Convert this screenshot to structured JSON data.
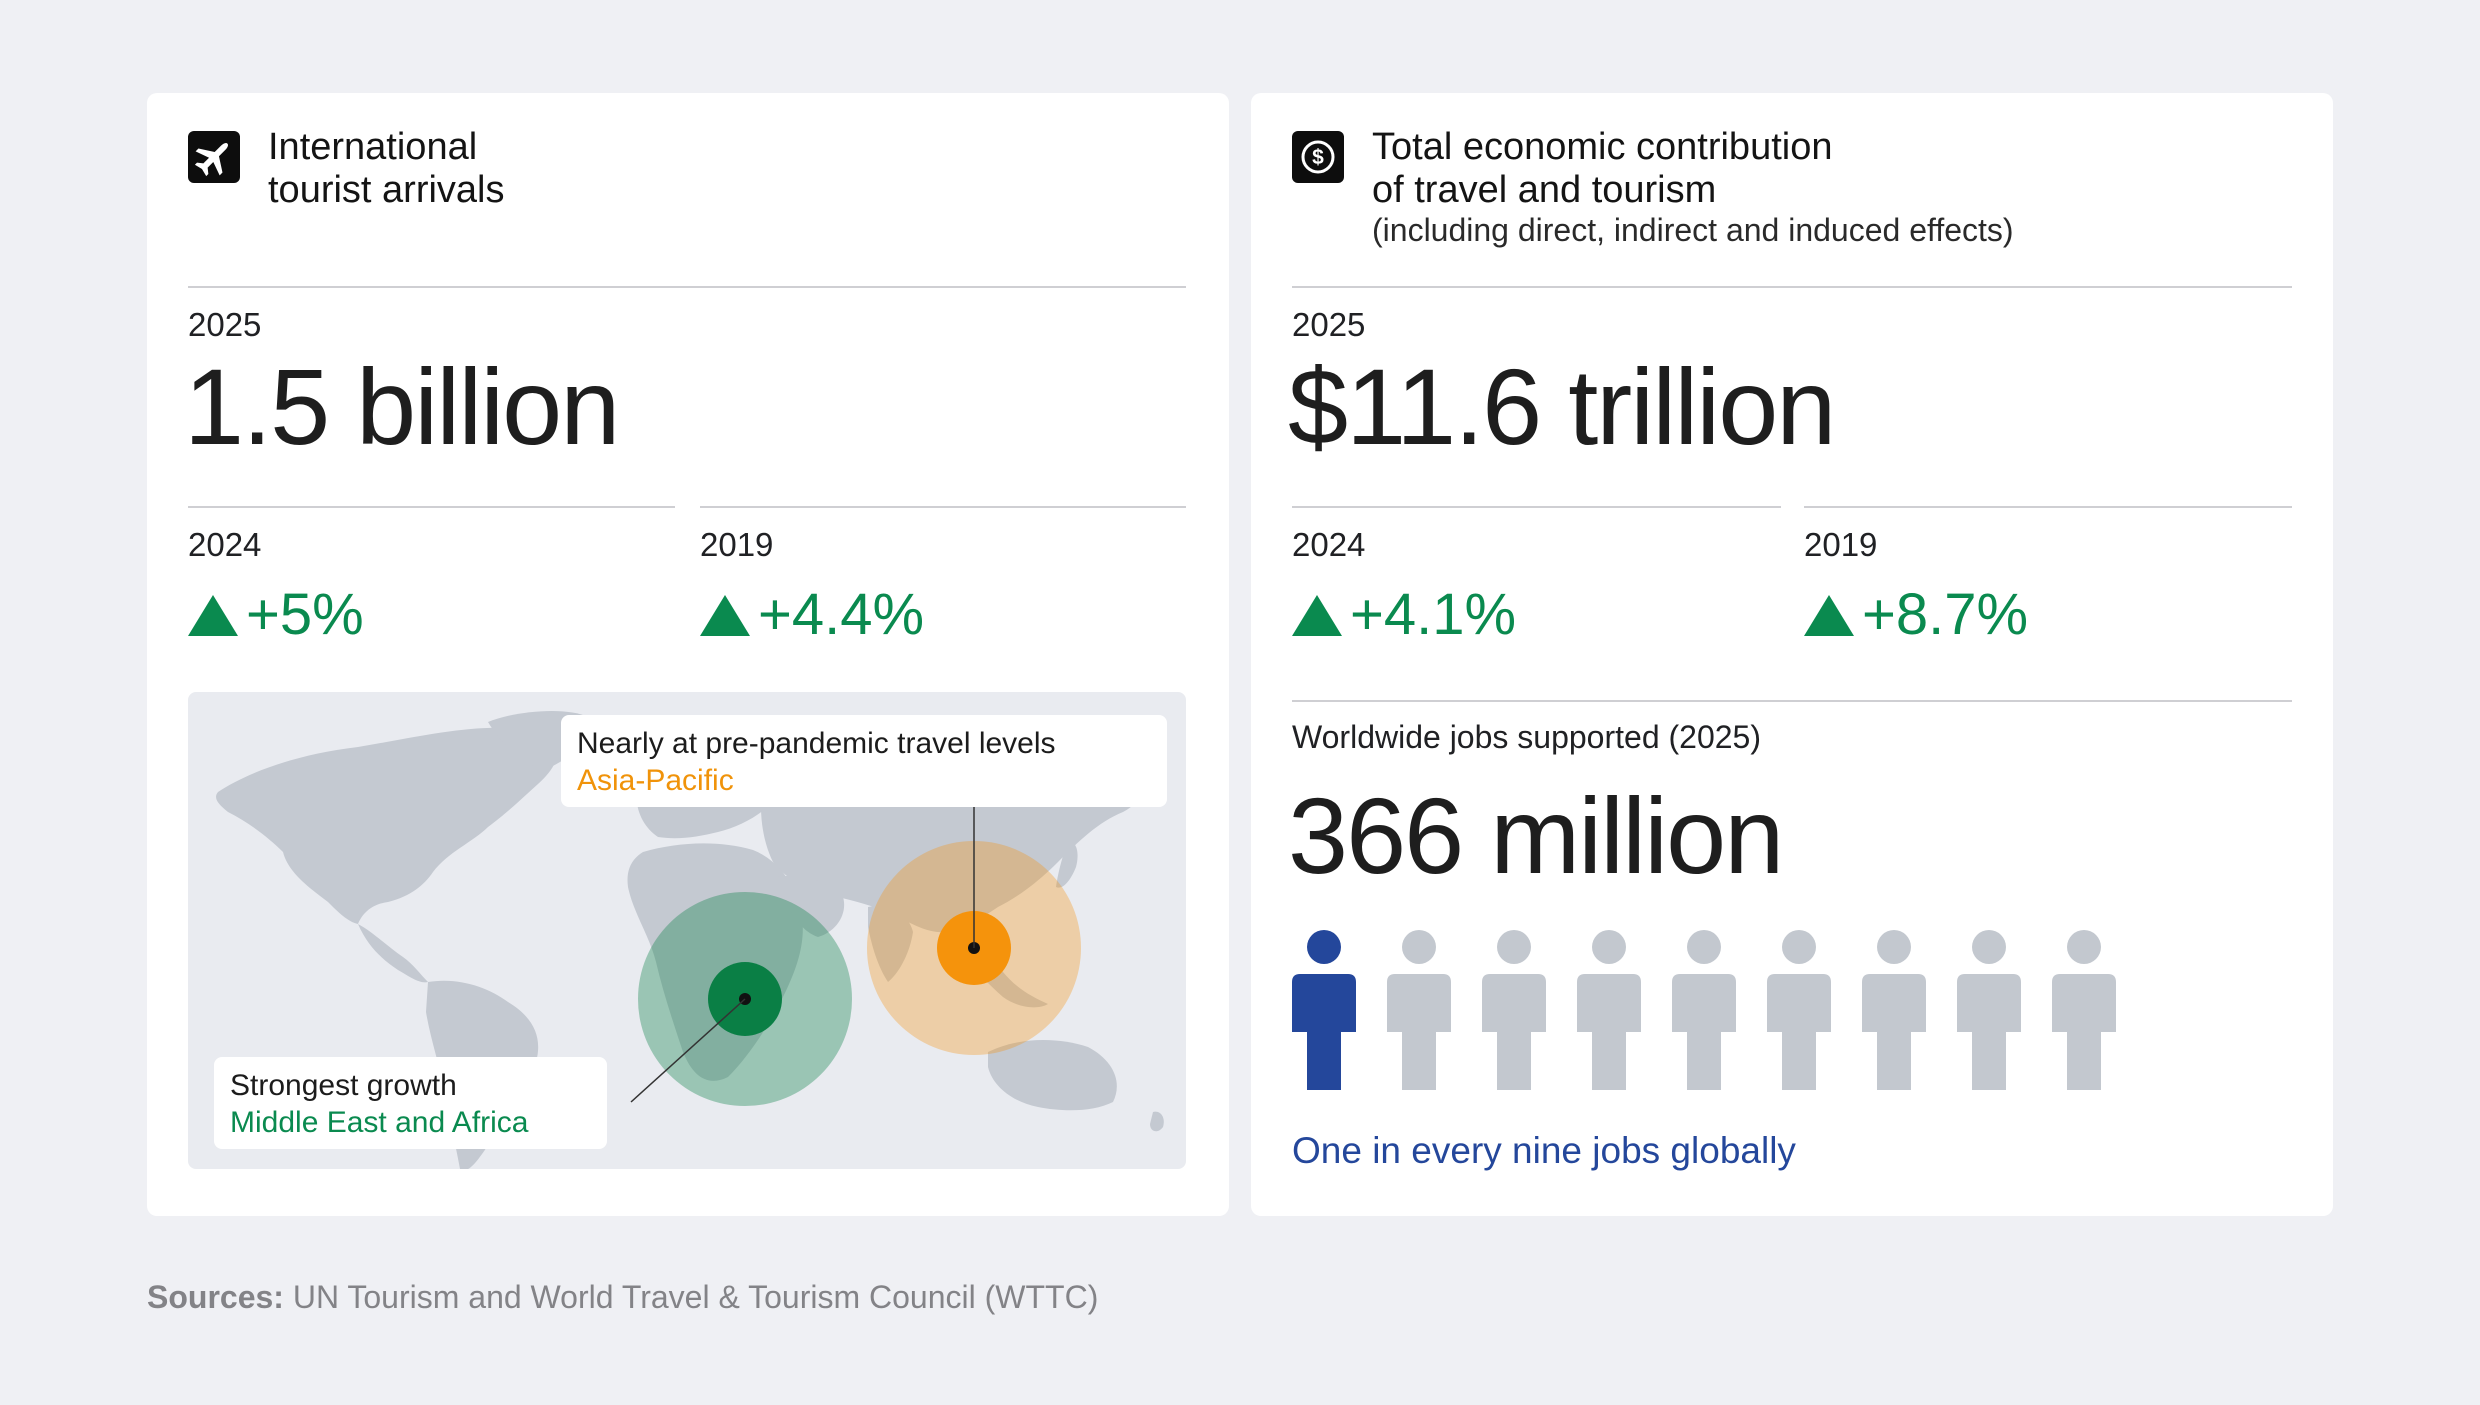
{
  "left_card": {
    "icon": "airplane-icon",
    "title_line1": "International",
    "title_line2": "tourist arrivals",
    "main_year": "2025",
    "main_value": "1.5 billion",
    "compare": [
      {
        "year": "2024",
        "value": "+5%"
      },
      {
        "year": "2019",
        "value": "+4.4%"
      }
    ],
    "map": {
      "callout_top_line1": "Nearly at pre-pandemic travel levels",
      "callout_top_line2": "Asia-Pacific",
      "callout_bottom_line1": "Strongest growth",
      "callout_bottom_line2": "Middle East and Africa",
      "colors": {
        "asia_pacific": "#f5930c",
        "middle_east_africa": "#0a7f45",
        "land": "#c4c9d1"
      }
    }
  },
  "right_card": {
    "icon": "dollar-icon",
    "title_line1": "Total economic contribution",
    "title_line2": "of travel and tourism",
    "subtitle": "(including direct, indirect and induced effects)",
    "main_year": "2025",
    "main_value": "$11.6 trillion",
    "compare": [
      {
        "year": "2024",
        "value": "+4.1%"
      },
      {
        "year": "2019",
        "value": "+8.7%"
      }
    ],
    "jobs_label": "Worldwide jobs supported (2025)",
    "jobs_value": "366 million",
    "jobs_highlighted": 1,
    "jobs_total_icons": 9,
    "jobs_caption": "One in every nine jobs globally"
  },
  "sources": {
    "label": "Sources:",
    "text": " UN Tourism and World Travel & Tourism Council (WTTC)"
  },
  "colors": {
    "positive": "#0a8a4f",
    "highlight_person": "#24479b",
    "grey_person": "#c3c8cf"
  }
}
